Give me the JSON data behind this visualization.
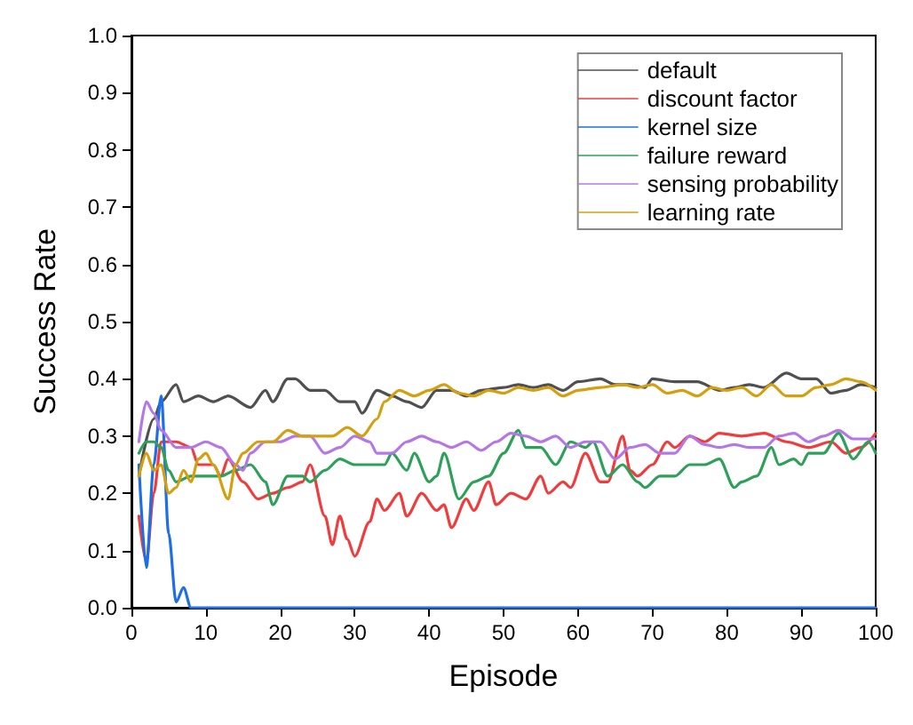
{
  "chart_data": {
    "type": "line",
    "xlabel": "Episode",
    "ylabel": "Success Rate",
    "xlim": [
      0,
      100
    ],
    "xticks": [
      0,
      10,
      20,
      30,
      40,
      50,
      60,
      70,
      80,
      90,
      100
    ],
    "ylim": [
      0,
      1
    ],
    "yticks": [
      {
        "value": 0,
        "label": "0.0"
      },
      {
        "value": 0.1,
        "label": "0.1"
      },
      {
        "value": 0.2,
        "label": "0.2"
      },
      {
        "value": 0.3,
        "label": "0.3"
      },
      {
        "value": 0.4,
        "label": "0.4"
      },
      {
        "value": 0.5,
        "label": "0.5"
      },
      {
        "value": 0.6,
        "label": "0.6"
      },
      {
        "value": 0.7,
        "label": "0.7"
      },
      {
        "value": 0.8,
        "label": "0.8"
      },
      {
        "value": 0.9,
        "label": "0.9"
      },
      {
        "value": 1,
        "label": "1.0"
      }
    ],
    "grid": false,
    "legend": "top right",
    "marker": "none",
    "line_style": "solid",
    "series": [
      {
        "name": "default",
        "color": "#505050",
        "x": [
          1,
          3,
          4,
          6,
          7,
          9,
          11,
          13,
          16,
          18,
          19,
          21,
          22,
          24,
          26,
          28,
          30,
          31,
          33,
          35,
          37,
          39,
          41,
          43,
          45,
          47,
          50,
          52,
          54,
          56,
          58,
          60,
          63,
          65,
          67,
          69,
          70,
          73,
          76,
          79,
          81,
          83,
          85,
          88,
          90,
          92,
          94,
          96,
          98,
          100
        ],
        "values": [
          0.23,
          0.33,
          0.36,
          0.39,
          0.36,
          0.37,
          0.36,
          0.37,
          0.35,
          0.38,
          0.36,
          0.4,
          0.4,
          0.38,
          0.38,
          0.36,
          0.36,
          0.34,
          0.38,
          0.37,
          0.36,
          0.35,
          0.38,
          0.38,
          0.37,
          0.38,
          0.385,
          0.39,
          0.385,
          0.39,
          0.38,
          0.395,
          0.4,
          0.39,
          0.39,
          0.385,
          0.4,
          0.395,
          0.395,
          0.38,
          0.385,
          0.39,
          0.385,
          0.41,
          0.4,
          0.4,
          0.375,
          0.38,
          0.39,
          0.385
        ]
      },
      {
        "name": "discount factor",
        "color": "#f03c3c",
        "x": [
          1,
          2,
          3,
          4,
          6,
          8,
          9,
          11,
          12,
          13,
          15,
          17,
          19,
          21,
          23,
          24,
          26,
          27,
          28,
          29,
          30,
          32,
          33,
          34,
          36,
          37,
          39,
          41,
          42,
          43,
          45,
          46,
          48,
          49,
          51,
          53,
          55,
          56,
          58,
          59,
          61,
          63,
          64,
          66,
          67,
          68,
          70,
          72,
          73,
          75,
          77,
          79,
          82,
          85,
          88,
          91,
          94,
          96,
          98,
          100
        ],
        "values": [
          0.16,
          0.08,
          0.2,
          0.29,
          0.29,
          0.28,
          0.25,
          0.25,
          0.23,
          0.26,
          0.22,
          0.19,
          0.2,
          0.21,
          0.22,
          0.25,
          0.16,
          0.11,
          0.16,
          0.12,
          0.09,
          0.15,
          0.19,
          0.17,
          0.2,
          0.16,
          0.2,
          0.17,
          0.18,
          0.14,
          0.19,
          0.17,
          0.22,
          0.18,
          0.2,
          0.19,
          0.23,
          0.2,
          0.22,
          0.21,
          0.27,
          0.22,
          0.22,
          0.3,
          0.24,
          0.23,
          0.25,
          0.29,
          0.28,
          0.3,
          0.29,
          0.305,
          0.3,
          0.305,
          0.29,
          0.28,
          0.29,
          0.27,
          0.28,
          0.305
        ]
      },
      {
        "name": "kernel size",
        "color": "#1e6ee6",
        "x": [
          1,
          2,
          3,
          4,
          5,
          6,
          7,
          8,
          10,
          100
        ],
        "values": [
          0.25,
          0.07,
          0.25,
          0.37,
          0.13,
          0.01,
          0.035,
          0,
          0,
          0
        ]
      },
      {
        "name": "failure reward",
        "color": "#2ea05a",
        "x": [
          1,
          2,
          3,
          4,
          5,
          6,
          8,
          10,
          12,
          14,
          16,
          18,
          19,
          21,
          23,
          24,
          26,
          28,
          30,
          32,
          34,
          35,
          37,
          38,
          40,
          41,
          42,
          44,
          46,
          48,
          50,
          52,
          53,
          55,
          57,
          59,
          61,
          62,
          64,
          66,
          68,
          69,
          71,
          73,
          75,
          77,
          79,
          81,
          82,
          84,
          86,
          87,
          89,
          90,
          91,
          93,
          95,
          97,
          99,
          100
        ],
        "values": [
          0.27,
          0.29,
          0.29,
          0.28,
          0.24,
          0.22,
          0.23,
          0.23,
          0.23,
          0.24,
          0.25,
          0.22,
          0.18,
          0.23,
          0.23,
          0.22,
          0.24,
          0.26,
          0.25,
          0.25,
          0.25,
          0.27,
          0.24,
          0.27,
          0.22,
          0.23,
          0.27,
          0.19,
          0.22,
          0.23,
          0.27,
          0.31,
          0.28,
          0.28,
          0.25,
          0.29,
          0.28,
          0.29,
          0.23,
          0.25,
          0.22,
          0.21,
          0.23,
          0.23,
          0.25,
          0.25,
          0.26,
          0.21,
          0.22,
          0.23,
          0.28,
          0.25,
          0.26,
          0.25,
          0.27,
          0.27,
          0.305,
          0.26,
          0.29,
          0.27
        ]
      },
      {
        "name": "sensing probability",
        "color": "#b478e6",
        "x": [
          1,
          2,
          3,
          4,
          6,
          8,
          10,
          12,
          14,
          15,
          16,
          18,
          20,
          22,
          24,
          26,
          28,
          30,
          32,
          33,
          35,
          37,
          39,
          41,
          43,
          45,
          47,
          49,
          51,
          53,
          55,
          57,
          59,
          61,
          63,
          65,
          67,
          69,
          71,
          73,
          75,
          77,
          79,
          81,
          83,
          85,
          87,
          89,
          91,
          93,
          95,
          97,
          100
        ],
        "values": [
          0.29,
          0.36,
          0.34,
          0.31,
          0.28,
          0.28,
          0.29,
          0.28,
          0.25,
          0.24,
          0.27,
          0.29,
          0.29,
          0.3,
          0.3,
          0.27,
          0.28,
          0.3,
          0.29,
          0.27,
          0.27,
          0.29,
          0.3,
          0.29,
          0.28,
          0.29,
          0.275,
          0.29,
          0.305,
          0.3,
          0.29,
          0.3,
          0.28,
          0.29,
          0.29,
          0.26,
          0.28,
          0.285,
          0.27,
          0.27,
          0.3,
          0.285,
          0.28,
          0.285,
          0.28,
          0.28,
          0.3,
          0.305,
          0.29,
          0.3,
          0.31,
          0.295,
          0.295
        ]
      },
      {
        "name": "learning rate",
        "color": "#d4a010",
        "x": [
          1,
          2,
          3,
          4,
          5,
          6,
          7,
          8,
          9,
          10,
          11,
          13,
          14,
          15,
          17,
          19,
          21,
          23,
          25,
          27,
          29,
          31,
          33,
          34,
          36,
          38,
          40,
          42,
          44,
          46,
          48,
          50,
          52,
          54,
          56,
          58,
          60,
          63,
          66,
          68,
          70,
          72,
          74,
          76,
          78,
          80,
          82,
          84,
          86,
          88,
          90,
          92,
          94,
          96,
          98,
          100
        ],
        "values": [
          0.23,
          0.27,
          0.24,
          0.25,
          0.2,
          0.21,
          0.24,
          0.22,
          0.26,
          0.27,
          0.25,
          0.19,
          0.25,
          0.27,
          0.29,
          0.29,
          0.31,
          0.3,
          0.3,
          0.3,
          0.315,
          0.3,
          0.33,
          0.36,
          0.38,
          0.37,
          0.38,
          0.39,
          0.375,
          0.37,
          0.38,
          0.375,
          0.385,
          0.38,
          0.385,
          0.37,
          0.38,
          0.385,
          0.39,
          0.385,
          0.39,
          0.375,
          0.38,
          0.37,
          0.385,
          0.38,
          0.385,
          0.37,
          0.39,
          0.37,
          0.37,
          0.385,
          0.39,
          0.4,
          0.395,
          0.38
        ]
      }
    ]
  }
}
